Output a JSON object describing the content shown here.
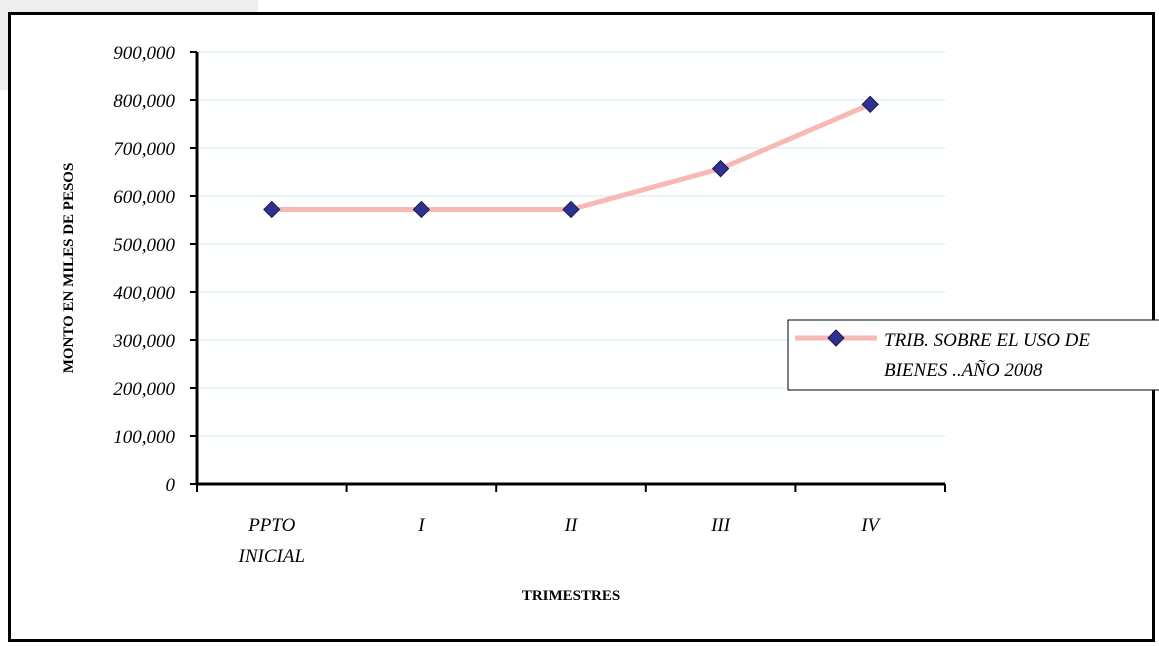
{
  "chart_data": {
    "type": "line",
    "categories": [
      [
        "PPTO",
        "INICIAL"
      ],
      [
        "I"
      ],
      [
        "II"
      ],
      [
        "III"
      ],
      [
        "IV"
      ]
    ],
    "series": [
      {
        "name": "TRIB. SOBRE EL USO DE BIENES ..AÑO 2008",
        "name_lines": [
          "TRIB. SOBRE EL USO DE",
          "BIENES ..AÑO 2008"
        ],
        "values": [
          572000,
          572000,
          572000,
          657000,
          791000
        ],
        "line_color": "#f7b9b6",
        "marker_color": "#2e3192"
      }
    ],
    "ylim": [
      0,
      900000
    ],
    "yticks": [
      0,
      100000,
      200000,
      300000,
      400000,
      500000,
      600000,
      700000,
      800000,
      900000
    ],
    "ytick_labels": [
      "0",
      "100,000",
      "200,000",
      "300,000",
      "400,000",
      "500,000",
      "600,000",
      "700,000",
      "800,000",
      "900,000"
    ],
    "xlabel": "TRIMESTRES",
    "ylabel": "MONTO EN MILES DE PESOS",
    "grid": true,
    "grid_color": "#ccecec",
    "legend_position": "right"
  }
}
